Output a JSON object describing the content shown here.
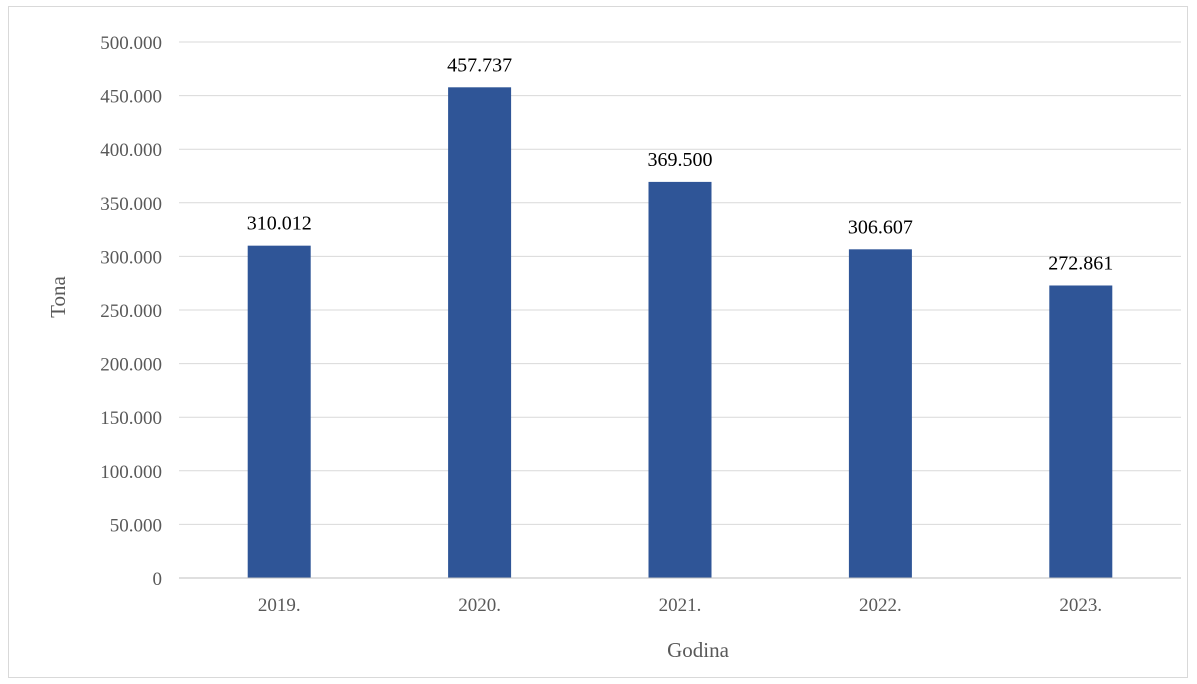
{
  "chart_data": {
    "type": "bar",
    "title": "",
    "xlabel": "Godina",
    "ylabel": "Tona",
    "categories": [
      "2019.",
      "2020.",
      "2021.",
      "2022.",
      "2023."
    ],
    "values": [
      310012,
      457737,
      369500,
      306607,
      272861
    ],
    "value_labels": [
      "310.012",
      "457.737",
      "369.500",
      "306.607",
      "272.861"
    ],
    "ylim": [
      0,
      500000
    ],
    "yticks": [
      0,
      50000,
      100000,
      150000,
      200000,
      250000,
      300000,
      350000,
      400000,
      450000,
      500000
    ],
    "ytick_labels": [
      "0",
      "50.000",
      "100.000",
      "150.000",
      "200.000",
      "250.000",
      "300.000",
      "350.000",
      "400.000",
      "450.000",
      "500.000"
    ],
    "grid": true,
    "legend": "none",
    "colors": {
      "bar": "#2F5597",
      "grid": "#d9d9d9",
      "axis": "#bfbfbf"
    }
  }
}
